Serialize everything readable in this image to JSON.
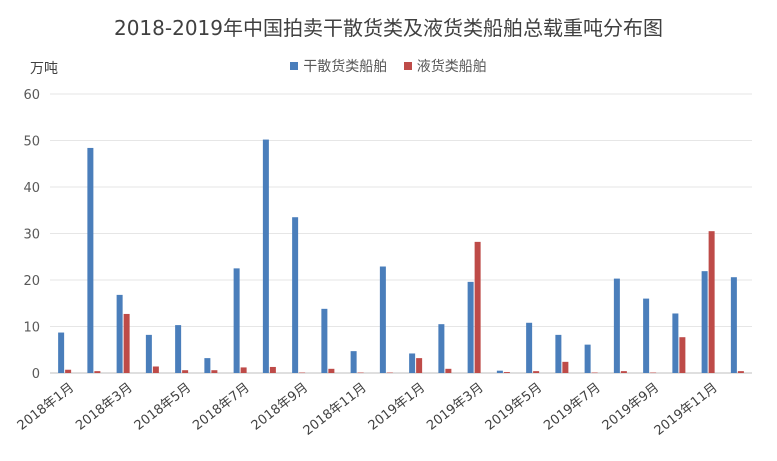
{
  "chart_data": {
    "type": "bar",
    "title": "2018-2019年中国拍卖干散货类及液货类船舶总载重吨分布图",
    "ylabel": "万吨",
    "ylim": [
      0,
      60
    ],
    "yticks": [
      0,
      10,
      20,
      30,
      40,
      50,
      60
    ],
    "grid": true,
    "legend_position": "top-center",
    "categories": [
      "2018年1月",
      "2018年2月",
      "2018年3月",
      "2018年4月",
      "2018年5月",
      "2018年6月",
      "2018年7月",
      "2018年8月",
      "2018年9月",
      "2018年10月",
      "2018年11月",
      "2018年12月",
      "2019年1月",
      "2019年2月",
      "2019年3月",
      "2019年4月",
      "2019年5月",
      "2019年6月",
      "2019年7月",
      "2019年8月",
      "2019年9月",
      "2019年10月",
      "2019年11月",
      "2019年12月"
    ],
    "xtick_labels": [
      "2018年1月",
      "2018年3月",
      "2018年5月",
      "2018年7月",
      "2018年9月",
      "2018年11月",
      "2019年1月",
      "2019年3月",
      "2019年5月",
      "2019年7月",
      "2019年9月",
      "2019年11月"
    ],
    "series": [
      {
        "name": "干散货类船舶",
        "color": "#4a7ebb",
        "values": [
          8.7,
          48.4,
          16.8,
          8.2,
          10.3,
          3.2,
          22.5,
          50.2,
          33.5,
          13.8,
          4.7,
          22.9,
          4.2,
          10.5,
          19.6,
          0.5,
          10.8,
          8.2,
          6.1,
          20.3,
          16.0,
          12.8,
          21.9,
          20.6
        ]
      },
      {
        "name": "液货类船舶",
        "color": "#be4b48",
        "values": [
          0.7,
          0.4,
          12.7,
          1.4,
          0.6,
          0.6,
          1.2,
          1.3,
          0.1,
          0.9,
          0.1,
          0.1,
          3.2,
          0.9,
          28.2,
          0.2,
          0.4,
          2.4,
          0.1,
          0.4,
          0.1,
          7.7,
          30.5,
          0.4
        ]
      }
    ]
  }
}
